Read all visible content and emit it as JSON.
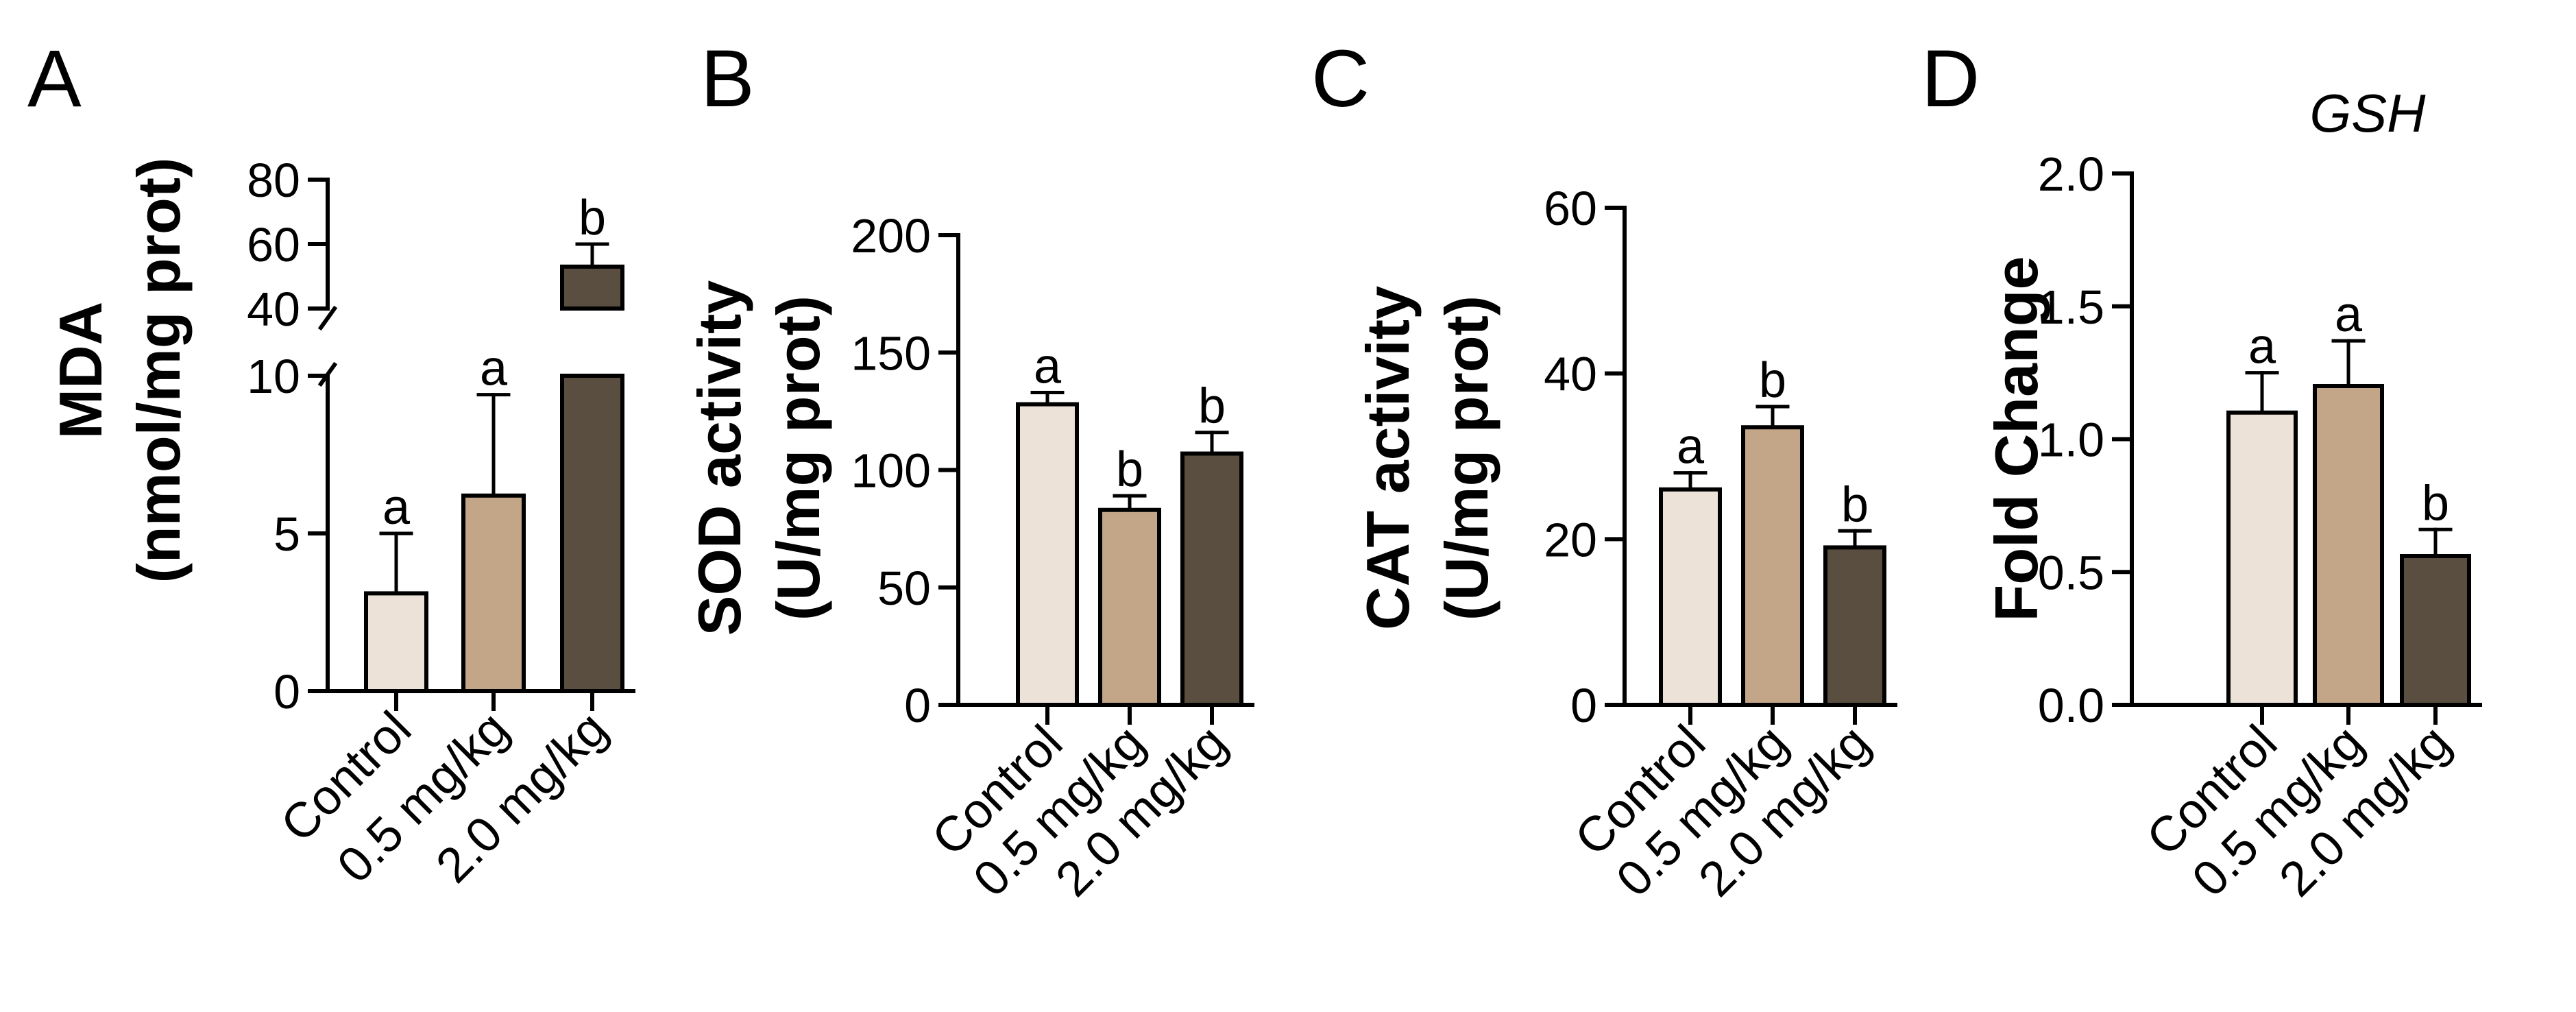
{
  "figure": {
    "panels": [
      "A",
      "B",
      "C",
      "D"
    ]
  },
  "colors": {
    "control": "#ECE2D8",
    "low_dose": "#C2A687",
    "high_dose": "#5A4E40",
    "axis": "#000000",
    "background": "#FFFFFF"
  },
  "chart_data": [
    {
      "panel": "A",
      "type": "bar",
      "title": "",
      "ylabel_lines": [
        "MDA",
        "(nmol/mg prot)"
      ],
      "categories": [
        "Control",
        "0.5 mg/kg",
        "2.0 mg/kg"
      ],
      "values": [
        3.1,
        6.2,
        53
      ],
      "errors": [
        1.9,
        3.2,
        7
      ],
      "letters": [
        "a",
        "a",
        "b"
      ],
      "axis_break": true,
      "ylim_lower": [
        0,
        10
      ],
      "ylim_upper": [
        40,
        80
      ],
      "yticks_lower": [
        0,
        5,
        10
      ],
      "yticks_upper": [
        40,
        60,
        80
      ],
      "ytick_labels_lower": [
        "0",
        "5",
        "10"
      ],
      "ytick_labels_upper": [
        "40",
        "60",
        "80"
      ]
    },
    {
      "panel": "B",
      "type": "bar",
      "title": "",
      "ylabel_lines": [
        "SOD activity",
        "(U/mg prot)"
      ],
      "categories": [
        "Control",
        "0.5 mg/kg",
        "2.0 mg/kg"
      ],
      "values": [
        128,
        83,
        107
      ],
      "errors": [
        5,
        6,
        9
      ],
      "letters": [
        "a",
        "b",
        "b"
      ],
      "ylim": [
        0,
        200
      ],
      "yticks": [
        0,
        50,
        100,
        150,
        200
      ],
      "ytick_labels": [
        "0",
        "50",
        "100",
        "150",
        "200"
      ]
    },
    {
      "panel": "C",
      "type": "bar",
      "title": "",
      "ylabel_lines": [
        "CAT activity",
        "(U/mg prot)"
      ],
      "categories": [
        "Control",
        "0.5 mg/kg",
        "2.0 mg/kg"
      ],
      "values": [
        26,
        33.5,
        19
      ],
      "errors": [
        2,
        2.5,
        2
      ],
      "letters": [
        "a",
        "b",
        "b"
      ],
      "ylim": [
        0,
        60
      ],
      "yticks": [
        0,
        20,
        40,
        60
      ],
      "ytick_labels": [
        "0",
        "20",
        "40",
        "60"
      ]
    },
    {
      "panel": "D",
      "type": "bar",
      "title": "GSH",
      "ylabel_lines": [
        "Fold Change"
      ],
      "categories": [
        "Control",
        "0.5 mg/kg",
        "2.0 mg/kg"
      ],
      "values": [
        1.1,
        1.2,
        0.56
      ],
      "errors": [
        0.15,
        0.17,
        0.1
      ],
      "letters": [
        "a",
        "a",
        "b"
      ],
      "ylim": [
        0,
        2
      ],
      "yticks": [
        0,
        0.5,
        1,
        1.5,
        2
      ],
      "ytick_labels": [
        "0.0",
        "0.5",
        "1.0",
        "1.5",
        "2.0"
      ]
    }
  ]
}
